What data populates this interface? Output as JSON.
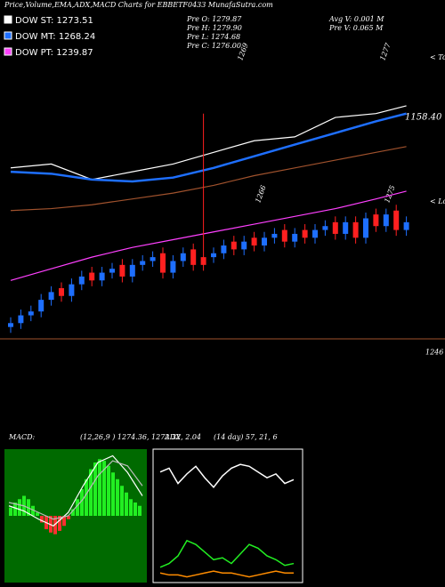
{
  "chart_data": [
    {
      "type": "candlestick",
      "title": "Price,Volume,EMA,ADX,MACD Charts for EBBETF0433 MunafaSutra.com",
      "stats": [
        "Pre   O: 1279.87",
        "Pre   H: 1279.90",
        "Pre   L: 1274.68",
        "Pre   C: 1276.00",
        "Avg V: 0.001 M",
        "Pre   V: 0.065 M"
      ],
      "annotations": [
        "1269",
        "1277",
        "1266",
        "1275",
        "1158.40",
        "< Tops",
        "< Lows"
      ],
      "hlines": [
        1246
      ],
      "ylim": [
        1237,
        1328
      ],
      "up_color": "#1e6fff",
      "down_color": "#ff2020",
      "open": [
        1249,
        1250,
        1252,
        1253,
        1256,
        1259,
        1257,
        1260,
        1263,
        1261,
        1263,
        1265,
        1262,
        1265,
        1266,
        1268,
        1263,
        1266,
        1269,
        1267,
        1267,
        1268,
        1271,
        1269,
        1272,
        1270,
        1272,
        1274,
        1271,
        1274,
        1272,
        1274,
        1276,
        1273,
        1276,
        1272,
        1278,
        1275,
        1279,
        1274
      ],
      "high": [
        1251.5,
        1253.5,
        1254.5,
        1257.5,
        1259.5,
        1260.5,
        1261.5,
        1263.5,
        1264.5,
        1264.5,
        1265.5,
        1266.5,
        1266.5,
        1267.5,
        1268.5,
        1269.5,
        1267.5,
        1269.5,
        1270.5,
        1304,
        1269.5,
        1271.5,
        1272.5,
        1272.5,
        1273.5,
        1273.5,
        1274.5,
        1275.5,
        1274.5,
        1275.5,
        1275.5,
        1276.5,
        1277.5,
        1277.5,
        1277.5,
        1278.5,
        1279.5,
        1279.5,
        1280.5,
        1277.5
      ],
      "low": [
        1247.5,
        1248.5,
        1250.5,
        1251.5,
        1254.5,
        1255.5,
        1255.5,
        1258.5,
        1259.5,
        1259.5,
        1261.5,
        1260.5,
        1260.5,
        1263.5,
        1264.5,
        1261.5,
        1261.5,
        1264.5,
        1263.5,
        1263.5,
        1265.5,
        1266.5,
        1267.5,
        1267.5,
        1268.5,
        1268.5,
        1270.5,
        1269.5,
        1269.5,
        1270.5,
        1270.5,
        1272.5,
        1271.5,
        1271.5,
        1270.5,
        1270.5,
        1273.5,
        1273.5,
        1272.5,
        1272.5
      ],
      "close": [
        1250,
        1252,
        1253,
        1256,
        1258,
        1257,
        1260,
        1262,
        1261,
        1263,
        1264,
        1262,
        1265,
        1266,
        1267,
        1263,
        1266,
        1268,
        1265,
        1265,
        1268,
        1270,
        1269,
        1271,
        1270,
        1272,
        1273,
        1271,
        1273,
        1272,
        1274,
        1275,
        1273,
        1276,
        1272,
        1277,
        1275,
        1278,
        1274,
        1276
      ],
      "series": [
        {
          "name": "DOW ST: 1273.51",
          "color": "#ffffff",
          "x": [
            0,
            4,
            8,
            12,
            16,
            20,
            24,
            28,
            32,
            36,
            39
          ],
          "values": [
            1290,
            1291,
            1287,
            1289,
            1291,
            1294,
            1297,
            1298,
            1303,
            1304,
            1306
          ]
        },
        {
          "name": "DOW MT: 1268.24",
          "color": "#1e6fff",
          "x": [
            0,
            4,
            8,
            12,
            16,
            20,
            24,
            28,
            32,
            36,
            39
          ],
          "values": [
            1289,
            1288.5,
            1287,
            1286.5,
            1287.5,
            1290,
            1293,
            1296,
            1299,
            1302,
            1304
          ]
        },
        {
          "name": "DOW PT: 1239.87",
          "color": "#ff40ff",
          "x": [
            0,
            4,
            8,
            12,
            16,
            20,
            24,
            28,
            32,
            36,
            39
          ],
          "values": [
            1261,
            1264,
            1267,
            1269.5,
            1271.5,
            1273.5,
            1275.5,
            1277.5,
            1279.5,
            1282,
            1284
          ]
        },
        {
          "color": "#a0522d",
          "x": [
            0,
            4,
            8,
            12,
            16,
            20,
            24,
            28,
            32,
            36,
            39
          ],
          "values": [
            1279,
            1279.5,
            1280.5,
            1282,
            1283.5,
            1285.5,
            1288,
            1290,
            1292,
            1294,
            1295.5
          ]
        }
      ]
    },
    {
      "type": "macd",
      "title": "MACD:",
      "subtitle": "(12,26,9 ) 1274.36, 1272.32, 2.04",
      "ylim": [
        -4,
        4
      ],
      "up_color": "#22ee22",
      "down_color": "#ff3030",
      "values": [
        0.5,
        0.8,
        1,
        1.2,
        1,
        0.6,
        0.2,
        -0.4,
        -0.8,
        -1,
        -1.1,
        -0.9,
        -0.6,
        -0.2,
        0.4,
        1,
        1.6,
        2.2,
        2.8,
        3.2,
        3.4,
        3.3,
        3,
        2.6,
        2.2,
        1.8,
        1.4,
        1,
        0.8,
        0.6
      ],
      "series": [
        {
          "color": "#ffffff",
          "values": [
            0.6,
            0.3,
            -0.2,
            -0.6,
            0.2,
            1.8,
            3.2,
            3.6,
            2.6,
            1.2
          ]
        },
        {
          "color": "#bbbbbb",
          "values": [
            0.8,
            0.6,
            0.2,
            -0.2,
            0,
            1,
            2.4,
            3.3,
            3,
            1.8
          ]
        }
      ]
    },
    {
      "type": "line",
      "title": "ADX",
      "subtitle": "(14 day) 57, 21, 6",
      "ylim": [
        0,
        70
      ],
      "series": [
        {
          "color": "#ffffff",
          "values": [
            58,
            60,
            52,
            57,
            61,
            55,
            50,
            56,
            60,
            62,
            61,
            58,
            55,
            57,
            52,
            54
          ]
        },
        {
          "color": "#22ee22",
          "values": [
            8,
            10,
            14,
            22,
            20,
            16,
            12,
            13,
            10,
            15,
            20,
            18,
            14,
            12,
            9,
            10
          ]
        },
        {
          "color": "#ff8c00",
          "values": [
            5,
            4,
            4,
            3,
            4,
            5,
            6,
            5,
            5,
            4,
            3,
            4,
            5,
            6,
            5,
            5
          ]
        }
      ]
    }
  ]
}
